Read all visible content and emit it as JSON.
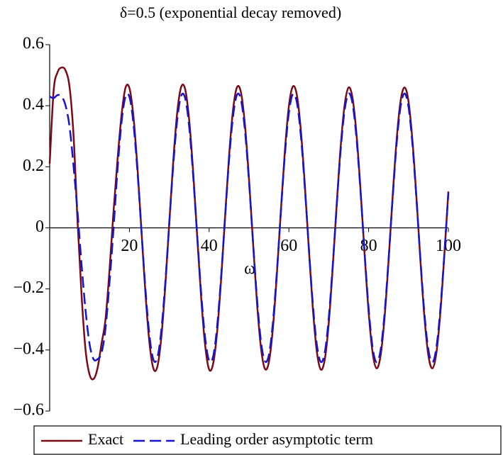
{
  "chart_data": {
    "type": "line",
    "title": "δ=0.5 (exponential decay removed)",
    "x_label": "ω",
    "xlim": [
      0,
      100
    ],
    "ylim": [
      -0.6,
      0.6
    ],
    "xticks": [
      20,
      40,
      60,
      80,
      100
    ],
    "yticks": [
      {
        "value": -0.6,
        "label": "−0.6"
      },
      {
        "value": -0.4,
        "label": "−0.4"
      },
      {
        "value": -0.2,
        "label": "−0.2"
      },
      0,
      0.2,
      0.4,
      0.6
    ],
    "legend": "bottom",
    "x": [
      0,
      1,
      2,
      3,
      4,
      5,
      6,
      7,
      8,
      9,
      10,
      11,
      12,
      13,
      14,
      15,
      16,
      17,
      18,
      19,
      20,
      21,
      22,
      23,
      24,
      25,
      26,
      27,
      28,
      29,
      30,
      31,
      32,
      33,
      34,
      35,
      36,
      37,
      38,
      39,
      40,
      41,
      42,
      43,
      44,
      45,
      46,
      47,
      48,
      49,
      50,
      51,
      52,
      53,
      54,
      55,
      56,
      57,
      58,
      59,
      60,
      61,
      62,
      63,
      64,
      65,
      66,
      67,
      68,
      69,
      70,
      71,
      72,
      73,
      74,
      75,
      76,
      77,
      78,
      79,
      80,
      81,
      82,
      83,
      84,
      85,
      86,
      87,
      88,
      89,
      90,
      91,
      92,
      93,
      94,
      95,
      96,
      97,
      98,
      99,
      100
    ],
    "series": [
      {
        "name": "Exact",
        "color": "#7a0a16",
        "dash": false,
        "values": [
          0.21,
          0.45,
          0.51,
          0.525,
          0.515,
          0.46,
          0.3,
          0.02,
          -0.22,
          -0.4,
          -0.48,
          -0.495,
          -0.46,
          -0.38,
          -0.3,
          -0.14,
          0.05,
          0.22,
          0.366,
          0.458,
          0.458,
          0.366,
          0.201,
          -0.005,
          -0.21,
          -0.373,
          -0.46,
          -0.455,
          -0.359,
          -0.191,
          0.016,
          0.219,
          0.379,
          0.462,
          0.453,
          0.352,
          0.181,
          -0.027,
          -0.229,
          -0.385,
          -0.464,
          -0.445,
          -0.341,
          -0.169,
          0.037,
          0.236,
          0.387,
          0.461,
          0.442,
          0.334,
          0.159,
          -0.047,
          -0.245,
          -0.393,
          -0.462,
          -0.438,
          -0.327,
          -0.149,
          0.058,
          0.253,
          0.399,
          0.463,
          0.435,
          0.319,
          0.14,
          -0.068,
          -0.262,
          -0.404,
          -0.464,
          -0.431,
          -0.312,
          -0.128,
          0.078,
          0.268,
          0.404,
          0.46,
          0.422,
          0.3,
          0.118,
          -0.088,
          -0.276,
          -0.409,
          -0.46,
          -0.418,
          -0.293,
          -0.108,
          0.098,
          0.285,
          0.414,
          0.46,
          0.414,
          0.284,
          0.098,
          -0.109,
          -0.293,
          -0.419,
          -0.46,
          -0.409,
          -0.276,
          -0.087,
          0.119
        ]
      },
      {
        "name": "Leading order asymptotic term",
        "color": "#1414d2",
        "dash": true,
        "values": [
          0.43,
          0.425,
          0.435,
          0.43,
          0.4,
          0.33,
          0.2,
          0.05,
          -0.12,
          -0.27,
          -0.38,
          -0.43,
          -0.43,
          -0.41,
          -0.33,
          -0.18,
          -0.005,
          0.188,
          0.343,
          0.429,
          0.429,
          0.343,
          0.188,
          -0.005,
          -0.197,
          -0.349,
          -0.431,
          -0.426,
          -0.336,
          -0.179,
          0.015,
          0.205,
          0.355,
          0.433,
          0.424,
          0.33,
          0.169,
          -0.025,
          -0.214,
          -0.361,
          -0.435,
          -0.421,
          -0.323,
          -0.16,
          0.035,
          0.223,
          0.366,
          0.436,
          0.418,
          0.316,
          0.151,
          -0.045,
          -0.231,
          -0.372,
          -0.437,
          -0.415,
          -0.309,
          -0.141,
          0.055,
          0.24,
          0.377,
          0.438,
          0.411,
          0.302,
          0.132,
          -0.065,
          -0.248,
          -0.382,
          -0.439,
          -0.408,
          -0.295,
          -0.122,
          0.074,
          0.257,
          0.387,
          0.44,
          0.404,
          0.287,
          0.113,
          -0.084,
          -0.264,
          -0.392,
          -0.44,
          -0.4,
          -0.28,
          -0.103,
          0.094,
          0.272,
          0.396,
          0.44,
          0.396,
          0.272,
          0.093,
          -0.104,
          -0.281,
          -0.4,
          -0.44,
          -0.391,
          -0.264,
          -0.084,
          0.114
        ]
      }
    ]
  }
}
